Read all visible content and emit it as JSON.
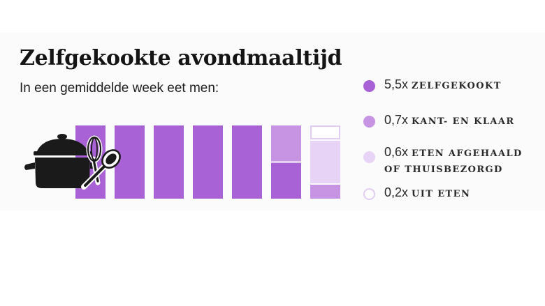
{
  "colors": {
    "zelfgekookt": "#a961d6",
    "kant_en_klaar": "#c793e3",
    "afgehaald": "#e6d3f5",
    "uit_eten_border": "#e2cdf2",
    "pot": "#1b1a1a"
  },
  "icon": "cooking-pot-whisk-spoon-icon",
  "chart_data": {
    "type": "bar",
    "title": "Zelfgekookte avondmaaltijd",
    "subtitle": "In een gemiddelde week eet men:",
    "days": 7,
    "series": [
      {
        "name": "zelfgekookt",
        "value": 5.5,
        "display": "5,5x",
        "color": "#a961d6"
      },
      {
        "name": "kant- en klaar",
        "value": 0.7,
        "display": "0,7x",
        "color": "#c793e3"
      },
      {
        "name": "eten afgehaald of thuisbezorgd",
        "value": 0.6,
        "display": "0,6x",
        "color": "#e6d3f5"
      },
      {
        "name": "uit eten",
        "value": 0.2,
        "display": "0,2x",
        "color": "#ffffff"
      }
    ],
    "legend_position": "right"
  },
  "legend": [
    {
      "num": "5,5x",
      "label": "zelfgekookt",
      "label2": ""
    },
    {
      "num": "0,7x",
      "label": "kant- en klaar",
      "label2": ""
    },
    {
      "num": "0,6x",
      "label": "eten afgehaald",
      "label2": "of thuisbezorgd"
    },
    {
      "num": "0,2x",
      "label": "uit eten",
      "label2": ""
    }
  ]
}
